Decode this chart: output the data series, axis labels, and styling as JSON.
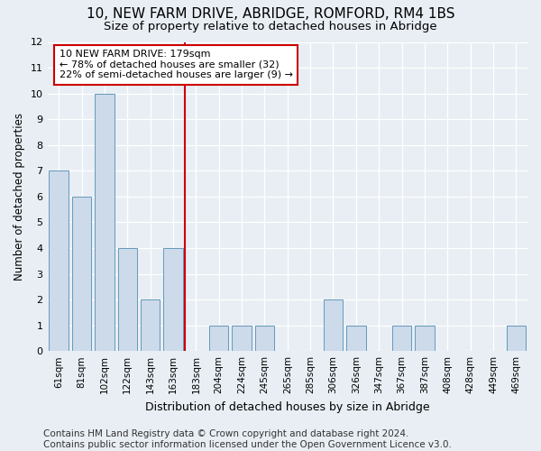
{
  "title": "10, NEW FARM DRIVE, ABRIDGE, ROMFORD, RM4 1BS",
  "subtitle": "Size of property relative to detached houses in Abridge",
  "xlabel": "Distribution of detached houses by size in Abridge",
  "ylabel": "Number of detached properties",
  "categories": [
    "61sqm",
    "81sqm",
    "102sqm",
    "122sqm",
    "143sqm",
    "163sqm",
    "183sqm",
    "204sqm",
    "224sqm",
    "245sqm",
    "265sqm",
    "285sqm",
    "306sqm",
    "326sqm",
    "347sqm",
    "367sqm",
    "387sqm",
    "408sqm",
    "428sqm",
    "449sqm",
    "469sqm"
  ],
  "values": [
    7,
    6,
    10,
    4,
    2,
    4,
    0,
    1,
    1,
    1,
    0,
    0,
    2,
    1,
    0,
    1,
    1,
    0,
    0,
    0,
    1
  ],
  "bar_color": "#ccdaea",
  "bar_edge_color": "#6699bb",
  "vline_color": "#cc0000",
  "vline_x": 6,
  "annotation_text": "10 NEW FARM DRIVE: 179sqm\n← 78% of detached houses are smaller (32)\n22% of semi-detached houses are larger (9) →",
  "annotation_box_color": "#ffffff",
  "annotation_box_edge": "#cc0000",
  "ylim": [
    0,
    12
  ],
  "yticks": [
    0,
    1,
    2,
    3,
    4,
    5,
    6,
    7,
    8,
    9,
    10,
    11,
    12
  ],
  "footer_line1": "Contains HM Land Registry data © Crown copyright and database right 2024.",
  "footer_line2": "Contains public sector information licensed under the Open Government Licence v3.0.",
  "background_color": "#e8eef4",
  "grid_color": "#ffffff",
  "title_fontsize": 11,
  "subtitle_fontsize": 9.5,
  "ylabel_fontsize": 8.5,
  "xlabel_fontsize": 9,
  "tick_fontsize": 7.5,
  "annotation_fontsize": 8,
  "footer_fontsize": 7.5
}
